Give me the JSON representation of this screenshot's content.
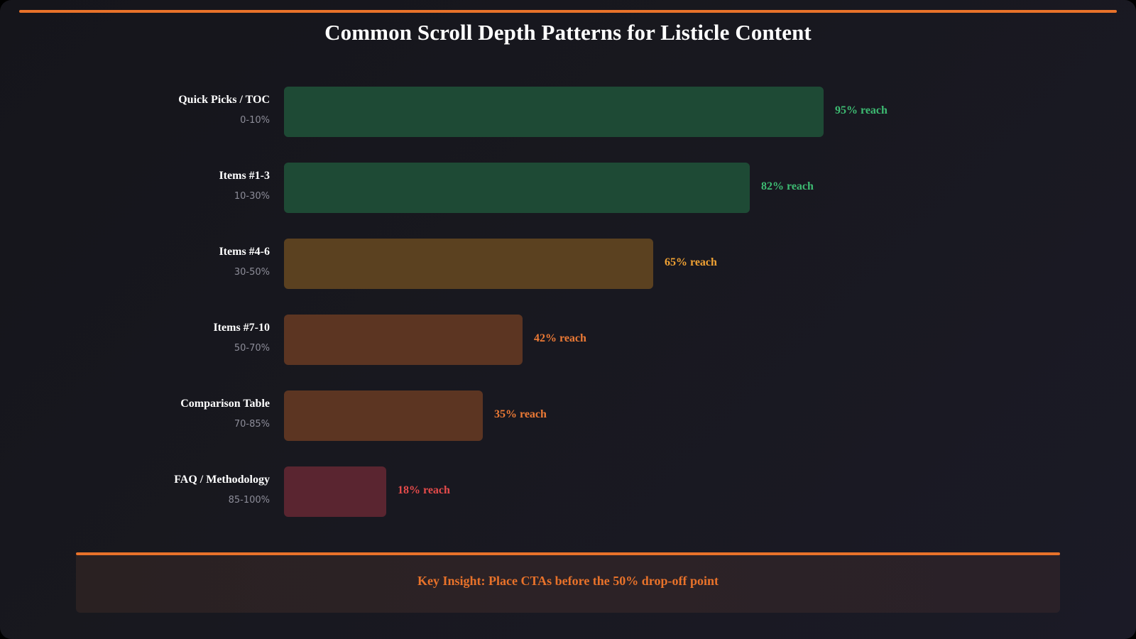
{
  "chart_data": {
    "type": "bar",
    "orientation": "horizontal",
    "title": "Common Scroll Depth Patterns for Listicle Content",
    "xlim": [
      0,
      100
    ],
    "grid": false,
    "categories": [
      {
        "name": "Quick Picks / TOC",
        "range": "0-10%",
        "value": 95,
        "label": "95% reach",
        "bar_color": "#1e4a35",
        "text_color": "#3dbb72"
      },
      {
        "name": "Items #1-3",
        "range": "10-30%",
        "value": 82,
        "label": "82% reach",
        "bar_color": "#1e4a35",
        "text_color": "#3dbb72"
      },
      {
        "name": "Items #4-6",
        "range": "30-50%",
        "value": 65,
        "label": "65% reach",
        "bar_color": "#5b4120",
        "text_color": "#f0a234"
      },
      {
        "name": "Items #7-10",
        "range": "50-70%",
        "value": 42,
        "label": "42% reach",
        "bar_color": "#5c3522",
        "text_color": "#ec7a36"
      },
      {
        "name": "Comparison Table",
        "range": "70-85%",
        "value": 35,
        "label": "35% reach",
        "bar_color": "#5c3522",
        "text_color": "#ec7a36"
      },
      {
        "name": "FAQ / Methodology",
        "range": "85-100%",
        "value": 18,
        "label": "18% reach",
        "bar_color": "#5a2530",
        "text_color": "#e54b4b"
      }
    ]
  },
  "insight": {
    "text": "Key Insight: Place CTAs before the 50% drop-off point"
  },
  "colors": {
    "accent": "#e8722a",
    "background": "#17171e"
  }
}
